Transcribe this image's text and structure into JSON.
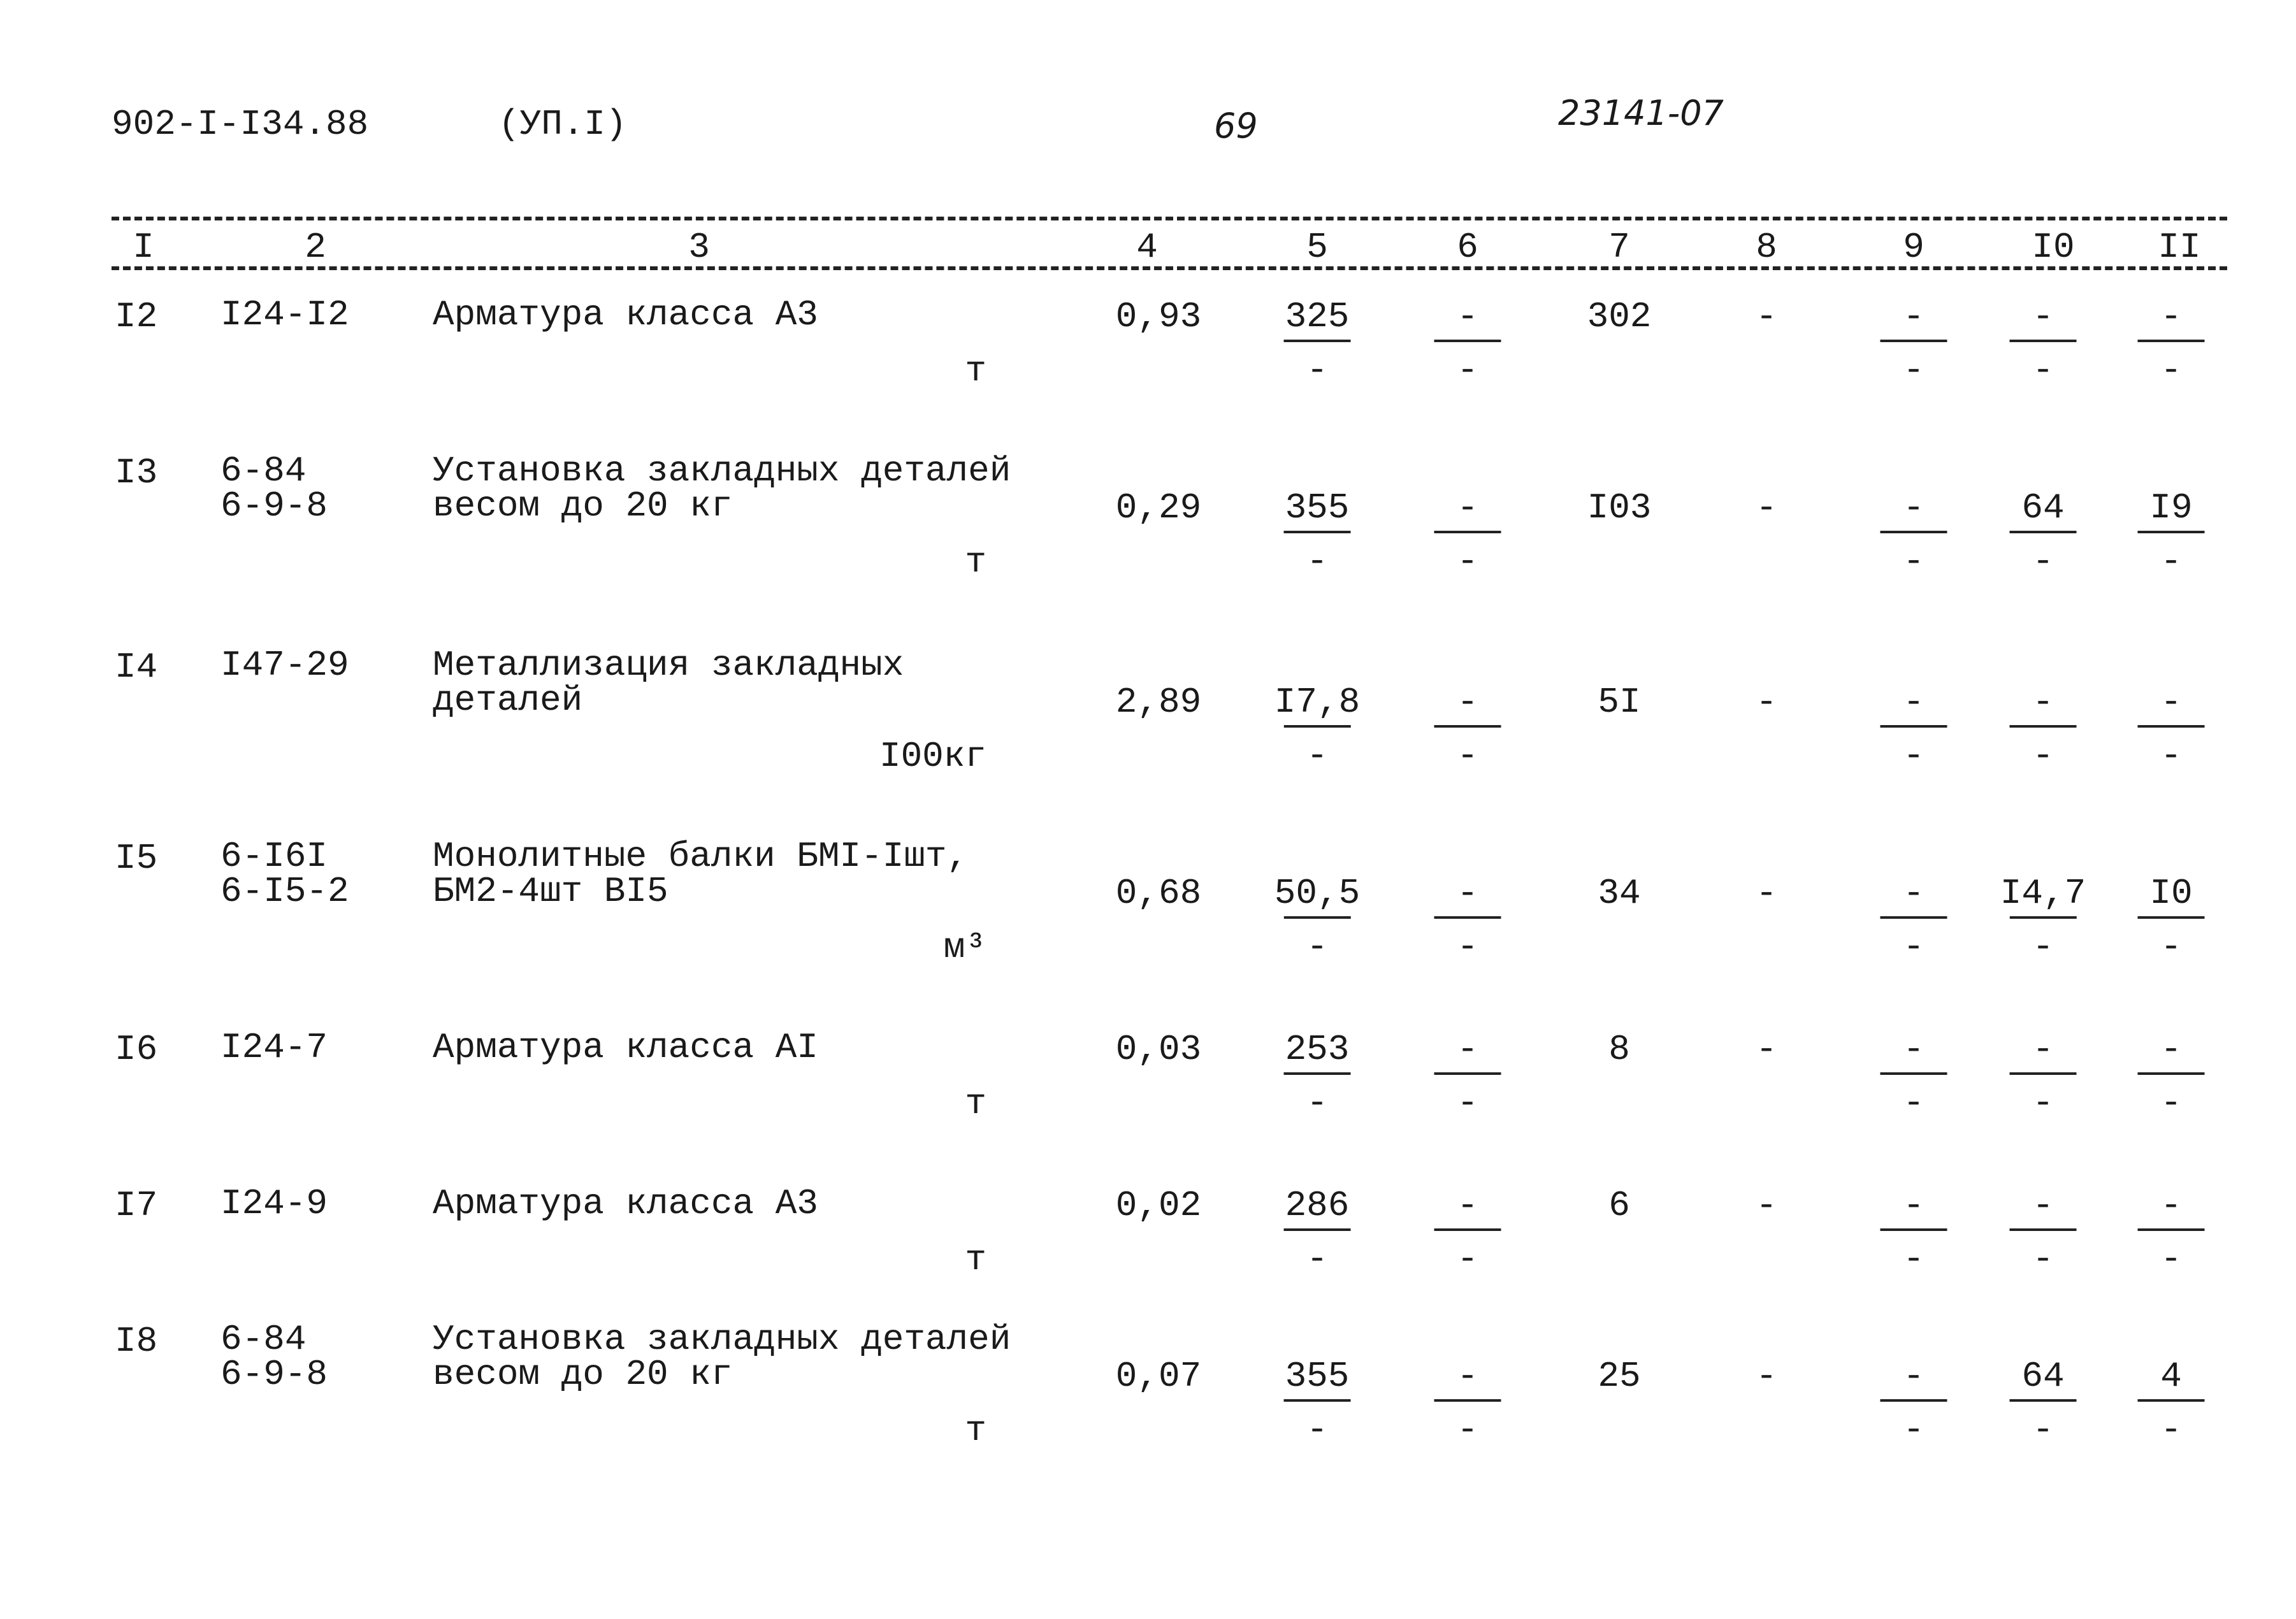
{
  "header": {
    "doc_code": "902-I-I34.88",
    "section": "(УП.I)",
    "page": "69",
    "stamp": "23141-07"
  },
  "columns": [
    "I",
    "2",
    "3",
    "4",
    "5",
    "6",
    "7",
    "8",
    "9",
    "I0",
    "II"
  ],
  "rows": [
    {
      "num": "I2",
      "code": [
        "I24-I2"
      ],
      "name": [
        "Арматура класса А3"
      ],
      "unit": "т",
      "c4": "0,93",
      "c5": [
        "325",
        "-"
      ],
      "c6": [
        "-",
        "-"
      ],
      "c7": "302",
      "c8": "-",
      "c9": [
        "-",
        "-"
      ],
      "c10": [
        "-",
        "-"
      ],
      "c11": [
        "-",
        "-"
      ]
    },
    {
      "num": "I3",
      "code": [
        "6-84",
        "6-9-8"
      ],
      "name": [
        "Установка закладных деталей",
        "весом до 20 кг"
      ],
      "unit": "т",
      "c4": "0,29",
      "c5": [
        "355",
        "-"
      ],
      "c6": [
        "-",
        "-"
      ],
      "c7": "I03",
      "c8": "-",
      "c9": [
        "-",
        "-"
      ],
      "c10": [
        "64",
        "-"
      ],
      "c11": [
        "I9",
        "-"
      ]
    },
    {
      "num": "I4",
      "code": [
        "I47-29"
      ],
      "name": [
        "Металлизация закладных",
        "деталей"
      ],
      "unit": "I00кг",
      "c4": "2,89",
      "c5": [
        "I7,8",
        "-"
      ],
      "c6": [
        "-",
        "-"
      ],
      "c7": "5I",
      "c8": "-",
      "c9": [
        "-",
        "-"
      ],
      "c10": [
        "-",
        "-"
      ],
      "c11": [
        "-",
        "-"
      ]
    },
    {
      "num": "I5",
      "code": [
        "6-I6I",
        "6-I5-2"
      ],
      "name": [
        "Монолитные балки БМI-Iшт,",
        "БМ2-4шт ВI5"
      ],
      "unit": "м³",
      "c4": "0,68",
      "c5": [
        "50,5",
        "-"
      ],
      "c6": [
        "-",
        "-"
      ],
      "c7": "34",
      "c8": "-",
      "c9": [
        "-",
        "-"
      ],
      "c10": [
        "I4,7",
        "-"
      ],
      "c11": [
        "I0",
        "-"
      ]
    },
    {
      "num": "I6",
      "code": [
        "I24-7"
      ],
      "name": [
        "Арматура класса АI"
      ],
      "unit": "т",
      "c4": "0,03",
      "c5": [
        "253",
        "-"
      ],
      "c6": [
        "-",
        "-"
      ],
      "c7": "8",
      "c8": "-",
      "c9": [
        "-",
        "-"
      ],
      "c10": [
        "-",
        "-"
      ],
      "c11": [
        "-",
        "-"
      ]
    },
    {
      "num": "I7",
      "code": [
        "I24-9"
      ],
      "name": [
        "Арматура класса А3"
      ],
      "unit": "т",
      "c4": "0,02",
      "c5": [
        "286",
        "-"
      ],
      "c6": [
        "-",
        "-"
      ],
      "c7": "6",
      "c8": "-",
      "c9": [
        "-",
        "-"
      ],
      "c10": [
        "-",
        "-"
      ],
      "c11": [
        "-",
        "-"
      ]
    },
    {
      "num": "I8",
      "code": [
        "6-84",
        "6-9-8"
      ],
      "name": [
        "Установка закладных деталей",
        "весом до 20 кг"
      ],
      "unit": "т",
      "c4": "0,07",
      "c5": [
        "355",
        "-"
      ],
      "c6": [
        "-",
        "-"
      ],
      "c7": "25",
      "c8": "-",
      "c9": [
        "-",
        "-"
      ],
      "c10": [
        "64",
        "-"
      ],
      "c11": [
        "4",
        "-"
      ]
    }
  ]
}
